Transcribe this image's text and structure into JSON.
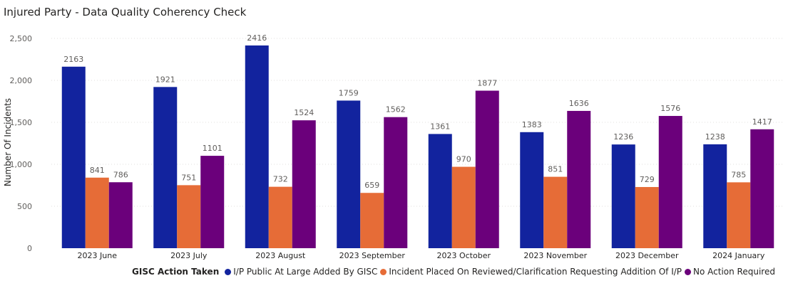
{
  "title": "Injured Party - Data Quality Coherency Check",
  "chart_data": {
    "type": "bar",
    "title": "Injured Party - Data Quality Coherency Check",
    "xlabel": "",
    "ylabel": "Number Of Incidents",
    "ylim": [
      0,
      2500
    ],
    "yticks": [
      0,
      500,
      1000,
      1500,
      2000,
      2500
    ],
    "ytick_labels": [
      "0",
      "500",
      "1,000",
      "1,500",
      "2,000",
      "2,500"
    ],
    "grid": true,
    "legend_title": "GISC Action Taken",
    "legend_position": "bottom",
    "categories": [
      "2023 June",
      "2023 July",
      "2023 August",
      "2023 September",
      "2023 October",
      "2023 November",
      "2023 December",
      "2024 January"
    ],
    "series": [
      {
        "name": "I/P Public At Large Added By GISC",
        "color": "#12239e",
        "values": [
          2163,
          1921,
          2416,
          1759,
          1361,
          1383,
          1236,
          1238
        ]
      },
      {
        "name": "Incident Placed On Reviewed/Clarification Requesting Addition Of I/P",
        "color": "#e66c37",
        "values": [
          841,
          751,
          732,
          659,
          970,
          851,
          729,
          785
        ]
      },
      {
        "name": "No Action Required",
        "color": "#6b007b",
        "values": [
          786,
          1101,
          1524,
          1562,
          1877,
          1636,
          1576,
          1417
        ]
      }
    ]
  }
}
